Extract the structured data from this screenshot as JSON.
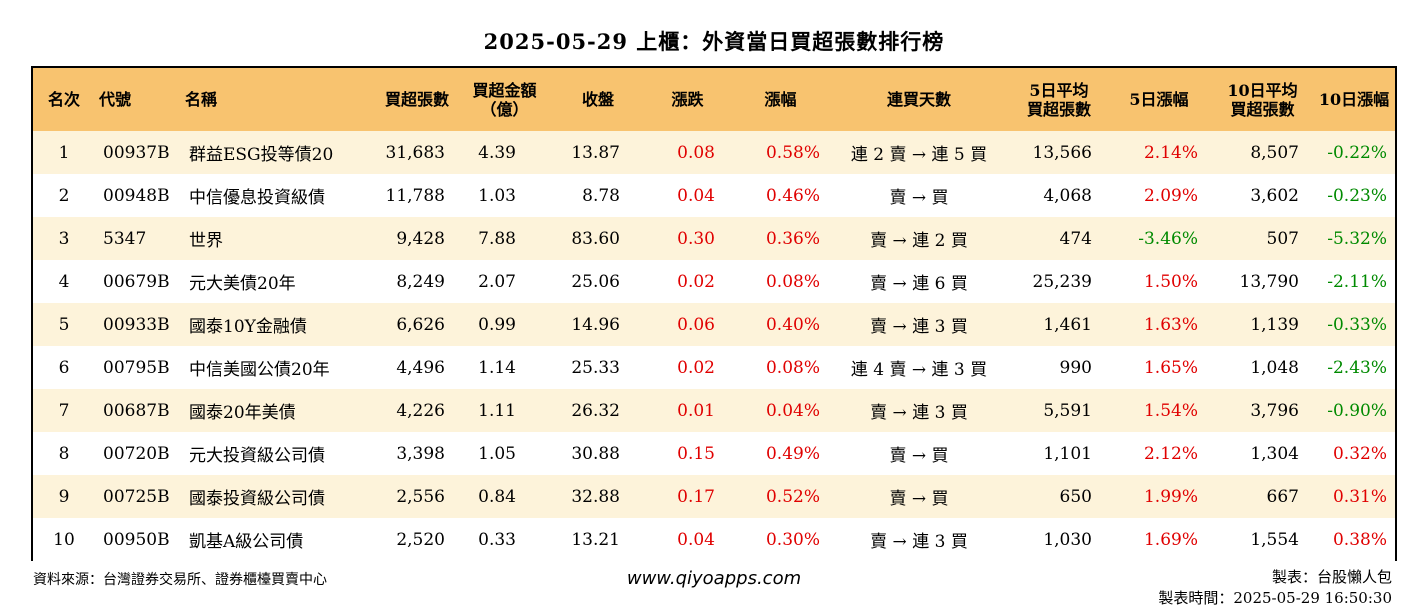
{
  "title": "2025-05-29 上櫃：外資當日買超張數排行榜",
  "columns": {
    "rank": "名次",
    "code": "代號",
    "name": "名稱",
    "net_buy_lots": "買超張數",
    "net_buy_amount_1": "買超金額",
    "net_buy_amount_2": "（億）",
    "close": "收盤",
    "change": "漲跌",
    "change_pct": "漲幅",
    "streak": "連買天數",
    "avg5_1": "5日平均",
    "avg5_2": "買超張數",
    "chg5": "5日漲幅",
    "avg10_1": "10日平均",
    "avg10_2": "買超張數",
    "chg10": "10日漲幅"
  },
  "rows": [
    {
      "rank": "1",
      "code": "00937B",
      "name": "群益ESG投等債20",
      "lots": "31,683",
      "amount": "4.39",
      "close": "13.87",
      "change": "0.08",
      "change_pct": "0.58%",
      "streak": "連 2 賣 → 連 5 買",
      "avg5": "13,566",
      "chg5": "2.14%",
      "chg5_color": "red",
      "avg10": "8,507",
      "chg10": "-0.22%",
      "chg10_color": "green"
    },
    {
      "rank": "2",
      "code": "00948B",
      "name": "中信優息投資級債",
      "lots": "11,788",
      "amount": "1.03",
      "close": "8.78",
      "change": "0.04",
      "change_pct": "0.46%",
      "streak": "賣 → 買",
      "avg5": "4,068",
      "chg5": "2.09%",
      "chg5_color": "red",
      "avg10": "3,602",
      "chg10": "-0.23%",
      "chg10_color": "green"
    },
    {
      "rank": "3",
      "code": "5347",
      "name": "世界",
      "lots": "9,428",
      "amount": "7.88",
      "close": "83.60",
      "change": "0.30",
      "change_pct": "0.36%",
      "streak": "賣 → 連 2 買",
      "avg5": "474",
      "chg5": "-3.46%",
      "chg5_color": "green",
      "avg10": "507",
      "chg10": "-5.32%",
      "chg10_color": "green"
    },
    {
      "rank": "4",
      "code": "00679B",
      "name": "元大美債20年",
      "lots": "8,249",
      "amount": "2.07",
      "close": "25.06",
      "change": "0.02",
      "change_pct": "0.08%",
      "streak": "賣 → 連 6 買",
      "avg5": "25,239",
      "chg5": "1.50%",
      "chg5_color": "red",
      "avg10": "13,790",
      "chg10": "-2.11%",
      "chg10_color": "green"
    },
    {
      "rank": "5",
      "code": "00933B",
      "name": "國泰10Y金融債",
      "lots": "6,626",
      "amount": "0.99",
      "close": "14.96",
      "change": "0.06",
      "change_pct": "0.40%",
      "streak": "賣 → 連 3 買",
      "avg5": "1,461",
      "chg5": "1.63%",
      "chg5_color": "red",
      "avg10": "1,139",
      "chg10": "-0.33%",
      "chg10_color": "green"
    },
    {
      "rank": "6",
      "code": "00795B",
      "name": "中信美國公債20年",
      "lots": "4,496",
      "amount": "1.14",
      "close": "25.33",
      "change": "0.02",
      "change_pct": "0.08%",
      "streak": "連 4 賣 → 連 3 買",
      "avg5": "990",
      "chg5": "1.65%",
      "chg5_color": "red",
      "avg10": "1,048",
      "chg10": "-2.43%",
      "chg10_color": "green"
    },
    {
      "rank": "7",
      "code": "00687B",
      "name": "國泰20年美債",
      "lots": "4,226",
      "amount": "1.11",
      "close": "26.32",
      "change": "0.01",
      "change_pct": "0.04%",
      "streak": "賣 → 連 3 買",
      "avg5": "5,591",
      "chg5": "1.54%",
      "chg5_color": "red",
      "avg10": "3,796",
      "chg10": "-0.90%",
      "chg10_color": "green"
    },
    {
      "rank": "8",
      "code": "00720B",
      "name": "元大投資級公司債",
      "lots": "3,398",
      "amount": "1.05",
      "close": "30.88",
      "change": "0.15",
      "change_pct": "0.49%",
      "streak": "賣 → 買",
      "avg5": "1,101",
      "chg5": "2.12%",
      "chg5_color": "red",
      "avg10": "1,304",
      "chg10": "0.32%",
      "chg10_color": "red"
    },
    {
      "rank": "9",
      "code": "00725B",
      "name": "國泰投資級公司債",
      "lots": "2,556",
      "amount": "0.84",
      "close": "32.88",
      "change": "0.17",
      "change_pct": "0.52%",
      "streak": "賣 → 買",
      "avg5": "650",
      "chg5": "1.99%",
      "chg5_color": "red",
      "avg10": "667",
      "chg10": "0.31%",
      "chg10_color": "red"
    },
    {
      "rank": "10",
      "code": "00950B",
      "name": "凱基A級公司債",
      "lots": "2,520",
      "amount": "0.33",
      "close": "13.21",
      "change": "0.04",
      "change_pct": "0.30%",
      "streak": "賣 → 連 3 買",
      "avg5": "1,030",
      "chg5": "1.69%",
      "chg5_color": "red",
      "avg10": "1,554",
      "chg10": "0.38%",
      "chg10_color": "red"
    }
  ],
  "colors": {
    "header_bg": "#f8c36f",
    "row_alt_bg": "#fdf3da",
    "up": "#e00000",
    "down": "#008a00"
  },
  "footer": {
    "source": "資料來源：台灣證券交易所、證券櫃檯買賣中心",
    "website": "www.qiyoapps.com",
    "author": "製表：台股懶人包",
    "generated": "製表時間：2025-05-29 16:50:30"
  }
}
